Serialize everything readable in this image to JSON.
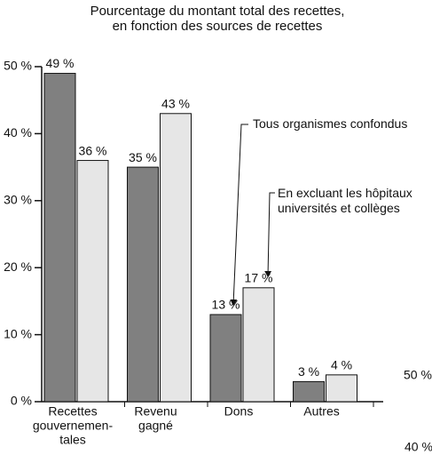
{
  "chart_data": {
    "type": "bar",
    "title": [
      "Pourcentage du montant total des recettes,",
      "en fonction des sources de recettes"
    ],
    "categories": [
      [
        "Recettes",
        "gouvernemen-",
        "tales"
      ],
      [
        "Revenu",
        "gagné"
      ],
      [
        "Dons"
      ],
      [
        "Autres"
      ]
    ],
    "series": [
      {
        "name": "Tous organismes confondus",
        "color": "#808080",
        "values": [
          49,
          35,
          13,
          3
        ],
        "value_labels": [
          "49 %",
          "35 %",
          "13 %",
          "3 %"
        ]
      },
      {
        "name": "En excluant les hôpitaux universités et collèges",
        "color": "#e6e6e6",
        "values": [
          36,
          43,
          17,
          4
        ],
        "value_labels": [
          "36 %",
          "43 %",
          "17 %",
          "4 %"
        ]
      }
    ],
    "ylim": [
      0,
      50
    ],
    "yticks": [
      {
        "value": 0,
        "label": "0 %"
      },
      {
        "value": 10,
        "label": "10 %"
      },
      {
        "value": 20,
        "label": "20 %"
      },
      {
        "value": 30,
        "label": "30 %"
      },
      {
        "value": 40,
        "label": "40 %"
      },
      {
        "value": 50,
        "label": "50 %"
      }
    ],
    "grid": false,
    "annotations": [
      "50 %",
      "40 %"
    ]
  }
}
